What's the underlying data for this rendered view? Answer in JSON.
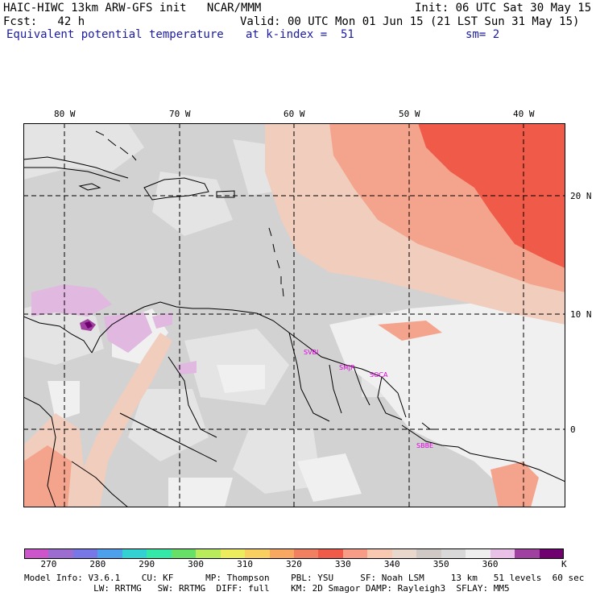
{
  "header": {
    "line1_left": "HAIC-HIWC 13km ARW-GFS init   NCAR/MMM",
    "line1_right": "Init: 06 UTC Sat 30 May 15",
    "line2_left": "Fcst:   42 h",
    "line2_right": "Valid: 00 UTC Mon 01 Jun 15 (21 LST Sun 31 May 15)",
    "line3_left": "Equivalent potential temperature",
    "line3_mid": "at k-index =  51",
    "line3_right": "sm= 2"
  },
  "axes": {
    "lon_labels": [
      "80 W",
      "70 W",
      "60 W",
      "50 W",
      "40 W"
    ],
    "lat_labels": [
      "20 N",
      "10 N",
      "0"
    ]
  },
  "cities": [
    "SVBI",
    "SMJP",
    "SOCA",
    "SBBE"
  ],
  "colorbar": {
    "colors": [
      "#cc55cc",
      "#9c6cd0",
      "#7777e8",
      "#4da0ec",
      "#33d2d2",
      "#33e8a8",
      "#66e066",
      "#b8ec5a",
      "#ecec5c",
      "#f8d060",
      "#f8a860",
      "#f08060",
      "#f05a48",
      "#f89c88",
      "#f8c8b0",
      "#e8d8cc",
      "#d0c8c4",
      "#d8d8d8",
      "#eeeeee",
      "#e8c0e8",
      "#a040a0",
      "#700070"
    ],
    "labels": [
      "270",
      "280",
      "290",
      "300",
      "310",
      "320",
      "330",
      "340",
      "350",
      "360"
    ],
    "unit": "K"
  },
  "footer": {
    "line1": "Model Info: V3.6.1    CU: KF      MP: Thompson    PBL: YSU     SF: Noah LSM     13 km   51 levels  60 sec",
    "line2": "             LW: RRTMG   SW: RRTMG  DIFF: full    KM: 2D Smagor DAMP: Rayleigh3  SFLAY: MM5"
  }
}
